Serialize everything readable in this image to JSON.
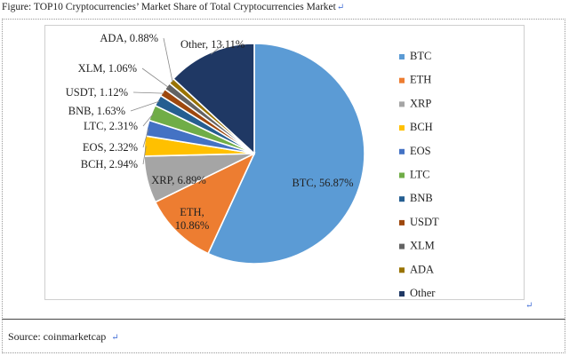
{
  "caption": {
    "text": "Figure: TOP10 Cryptocurrencies’ Market Share of Total Cryptocurrencies Market",
    "return_mark": "↵"
  },
  "source": {
    "text": "Source: coinmarketcap",
    "return_mark": "↵"
  },
  "end_mark": "↵",
  "chart_data": {
    "type": "pie",
    "title": "",
    "legend_position": "right",
    "start_angle_deg": 0,
    "direction": "clockwise",
    "series": [
      {
        "name": "BTC",
        "value": 56.87,
        "label": "BTC, 56.87%",
        "color": "#5B9BD5"
      },
      {
        "name": "ETH",
        "value": 10.86,
        "label": "ETH, 10.86%",
        "color": "#ED7D31"
      },
      {
        "name": "XRP",
        "value": 6.89,
        "label": "XRP, 6.89%",
        "color": "#A5A5A5"
      },
      {
        "name": "BCH",
        "value": 2.94,
        "label": "BCH, 2.94%",
        "color": "#FFC000"
      },
      {
        "name": "EOS",
        "value": 2.32,
        "label": "EOS, 2.32%",
        "color": "#4472C4"
      },
      {
        "name": "LTC",
        "value": 2.31,
        "label": "LTC, 2.31%",
        "color": "#70AD47"
      },
      {
        "name": "BNB",
        "value": 1.63,
        "label": "BNB, 1.63%",
        "color": "#255E91"
      },
      {
        "name": "USDT",
        "value": 1.12,
        "label": "USDT, 1.12%",
        "color": "#9E480E"
      },
      {
        "name": "XLM",
        "value": 1.06,
        "label": "XLM, 1.06%",
        "color": "#636363"
      },
      {
        "name": "ADA",
        "value": 0.88,
        "label": "ADA, 0.88%",
        "color": "#997300"
      },
      {
        "name": "Other",
        "value": 13.11,
        "label": "Other, 13.11%",
        "color": "#1F3864"
      }
    ]
  }
}
